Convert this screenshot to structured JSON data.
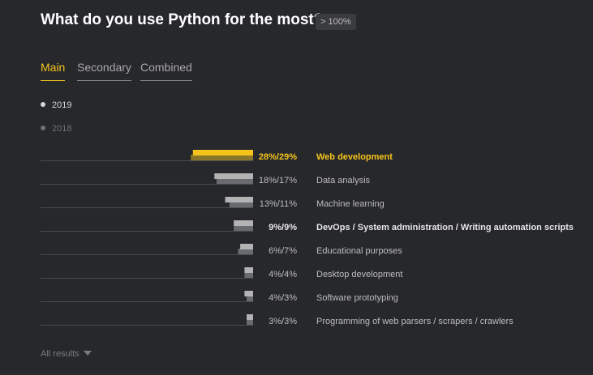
{
  "header": {
    "title": "What do you use Python for the most?",
    "badge": "> 100%"
  },
  "tabs": [
    {
      "label": "Main",
      "active": true
    },
    {
      "label": "Secondary",
      "active": false
    },
    {
      "label": "Combined",
      "active": false
    }
  ],
  "legend": {
    "current_year": "2019",
    "previous_year": "2018"
  },
  "footer": {
    "all_results": "All results"
  },
  "colors": {
    "highlight": "#f5c41b",
    "highlight_prev": "#8a7529",
    "bar_current": "#b3b3b3",
    "bar_previous": "#6a6b6f",
    "baseline": "#4a4b4f",
    "background": "#27282c"
  },
  "chart_data": {
    "type": "bar",
    "orientation": "horizontal",
    "series": [
      {
        "name": "2019",
        "values": [
          28,
          18,
          13,
          9,
          6,
          4,
          4,
          3
        ]
      },
      {
        "name": "2018",
        "values": [
          29,
          17,
          11,
          9,
          7,
          4,
          3,
          3
        ]
      }
    ],
    "labels": [
      "28%/29%",
      "18%/17%",
      "13%/11%",
      "9%/9%",
      "6%/7%",
      "4%/4%",
      "4%/3%",
      "3%/3%"
    ],
    "categories": [
      "Web development",
      "Data analysis",
      "Machine learning",
      "DevOps / System administration / Writing automation scripts",
      "Educational purposes",
      "Desktop development",
      "Software prototyping",
      "Programming of web parsers / scrapers / crawlers"
    ],
    "highlighted": [
      true,
      false,
      false,
      false,
      false,
      false,
      false,
      false
    ],
    "bold": [
      true,
      false,
      false,
      true,
      false,
      false,
      false,
      false
    ],
    "xlim": [
      0,
      100
    ]
  }
}
